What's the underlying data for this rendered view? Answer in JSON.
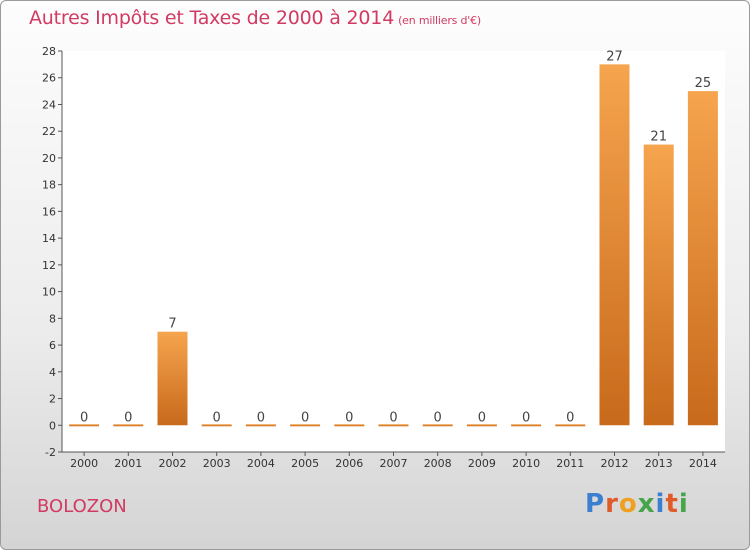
{
  "header": {
    "title": "Autres Impôts et Taxes de 2000 à 2014",
    "unit": "(en milliers d'€)"
  },
  "footer": {
    "place": "BOLOZON",
    "logo": "Proxiti"
  },
  "colors": {
    "title": "#d23a63",
    "bar_light": "#f6a44e",
    "bar_dark": "#c76a1b",
    "logo": [
      "#3b7fd1",
      "#e05a2a",
      "#f0a020",
      "#46a44b",
      "#3b7fd1",
      "#e05a2a",
      "#46a44b"
    ]
  },
  "chart_data": {
    "type": "bar",
    "title": "Autres Impôts et Taxes de 2000 à 2014",
    "subtitle": "(en milliers d'€)",
    "categories": [
      "2000",
      "2001",
      "2002",
      "2003",
      "2004",
      "2005",
      "2006",
      "2007",
      "2008",
      "2009",
      "2010",
      "2011",
      "2012",
      "2013",
      "2014"
    ],
    "values": [
      0,
      0,
      7,
      0,
      0,
      0,
      0,
      0,
      0,
      0,
      0,
      0,
      27,
      21,
      25
    ],
    "data_labels": [
      "0",
      "0",
      "7",
      "0",
      "0",
      "0",
      "0",
      "0",
      "0",
      "0",
      "0",
      "0",
      "27",
      "21",
      "25"
    ],
    "ylim": [
      -2,
      28
    ],
    "yticks": [
      -2,
      0,
      2,
      4,
      6,
      8,
      10,
      12,
      14,
      16,
      18,
      20,
      22,
      24,
      26,
      28
    ],
    "grid": false,
    "legend": "none"
  }
}
